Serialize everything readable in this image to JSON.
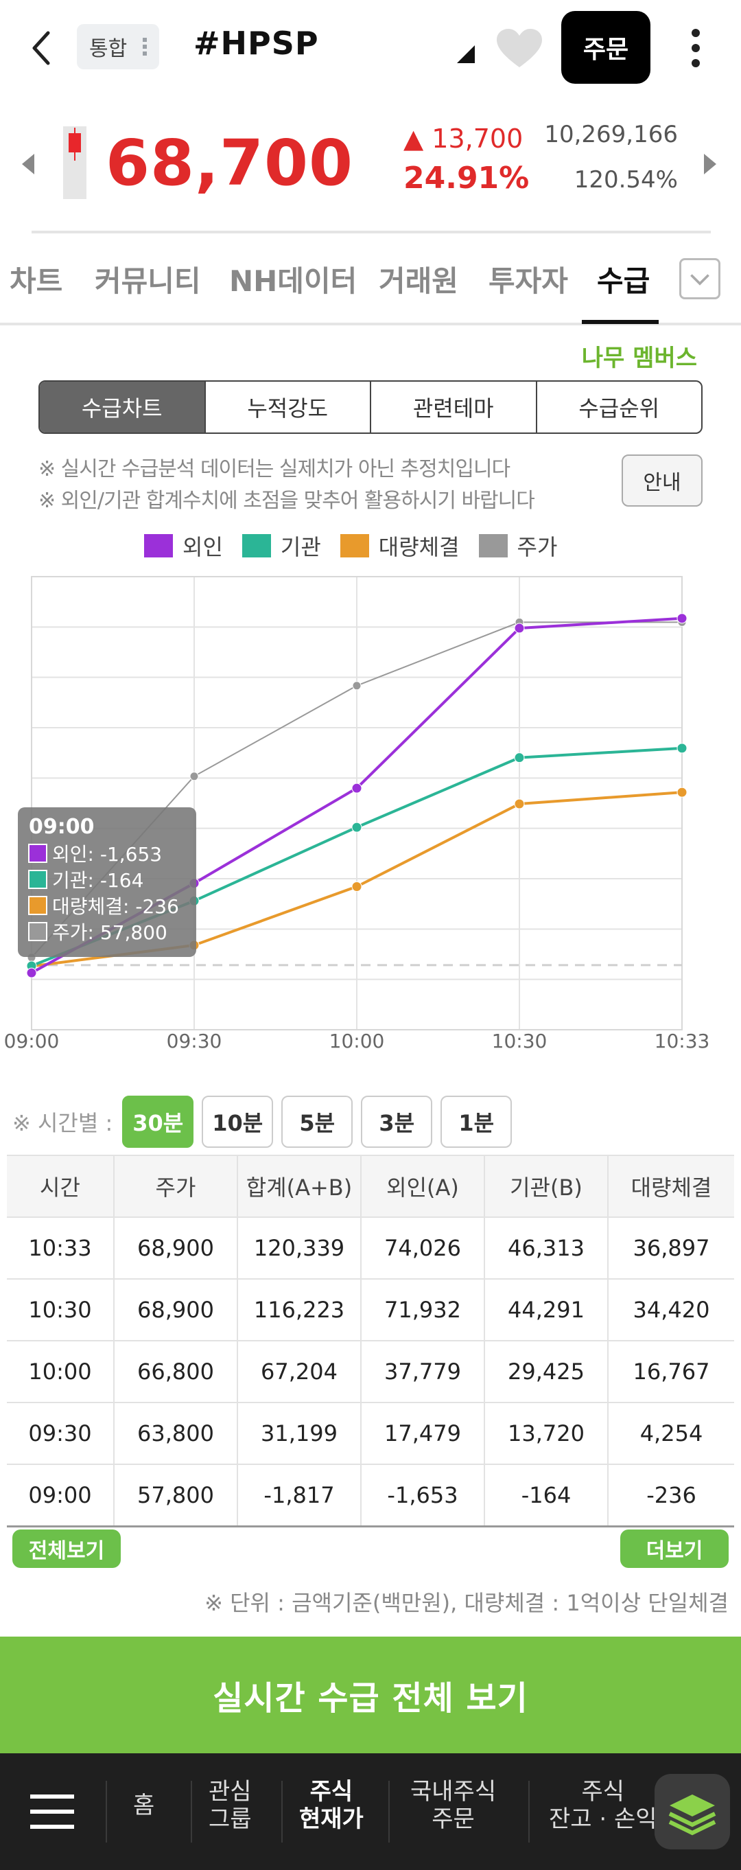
{
  "header": {
    "tag": "통합",
    "ticker": "#HPSP",
    "order_label": "주문"
  },
  "price": {
    "current": "68,700",
    "change": "▲ 13,700",
    "change_pct": "24.91%",
    "volume": "10,269,166",
    "ratio": "120.54%"
  },
  "tabs": [
    "차트",
    "커뮤니티",
    "NH데이터",
    "거래원",
    "투자자",
    "수급"
  ],
  "active_tab": "수급",
  "namu": "나무 멤버스",
  "segments": [
    "수급차트",
    "누적강도",
    "관련테마",
    "수급순위"
  ],
  "notices": [
    "※ 실시간 수급분석 데이터는 실제치가 아닌 추정치입니다",
    "※ 외인/기관 합계수치에 초점을 맞추어 활용하시기 바랍니다"
  ],
  "guide_label": "안내",
  "legend": [
    {
      "name": "외인",
      "color": "#9b30d9"
    },
    {
      "name": "기관",
      "color": "#2bb596"
    },
    {
      "name": "대량체결",
      "color": "#e89a2c"
    },
    {
      "name": "주가",
      "color": "#999999"
    }
  ],
  "chart_data": {
    "type": "line",
    "x": [
      "09:00",
      "09:30",
      "10:00",
      "10:30",
      "10:33"
    ],
    "series": [
      {
        "name": "외인",
        "values": [
          -1653,
          17479,
          37779,
          71932,
          74026
        ]
      },
      {
        "name": "기관",
        "values": [
          -164,
          13720,
          29425,
          44291,
          46313
        ]
      },
      {
        "name": "대량체결",
        "values": [
          -236,
          4254,
          16767,
          34420,
          36897
        ]
      },
      {
        "name": "주가",
        "values": [
          57800,
          63800,
          66800,
          68900,
          68900
        ]
      }
    ],
    "tooltip": {
      "title": "09:00",
      "rows": [
        "외인: -1,653",
        "기관: -164",
        "대량체결: -236",
        "주가: 57,800"
      ]
    }
  },
  "interval": {
    "label": "※ 시간별 :",
    "options": [
      "30분",
      "10분",
      "5분",
      "3분",
      "1분"
    ],
    "active": "30분"
  },
  "table": {
    "headers": [
      "시간",
      "주가",
      "합계(A+B)",
      "외인(A)",
      "기관(B)",
      "대량체결"
    ],
    "rows": [
      [
        "10:33",
        "68,900",
        "120,339",
        "74,026",
        "46,313",
        "36,897"
      ],
      [
        "10:30",
        "68,900",
        "116,223",
        "71,932",
        "44,291",
        "34,420"
      ],
      [
        "10:00",
        "66,800",
        "67,204",
        "37,779",
        "29,425",
        "16,767"
      ],
      [
        "09:30",
        "63,800",
        "31,199",
        "17,479",
        "13,720",
        "4,254"
      ],
      [
        "09:00",
        "57,800",
        "-1,817",
        "-1,653",
        "-164",
        "-236"
      ]
    ]
  },
  "buttons": {
    "view_all": "전체보기",
    "more": "더보기",
    "realtime": "실시간 수급 전체 보기"
  },
  "unit_note": "※ 단위 : 금액기준(백만원), 대량체결 : 1억이상 단일체결",
  "bottom_nav": {
    "items": [
      "홈",
      "관심\n그룹",
      "주식\n현재가",
      "국내주식\n주문",
      "주식\n잔고 · 손익"
    ]
  }
}
